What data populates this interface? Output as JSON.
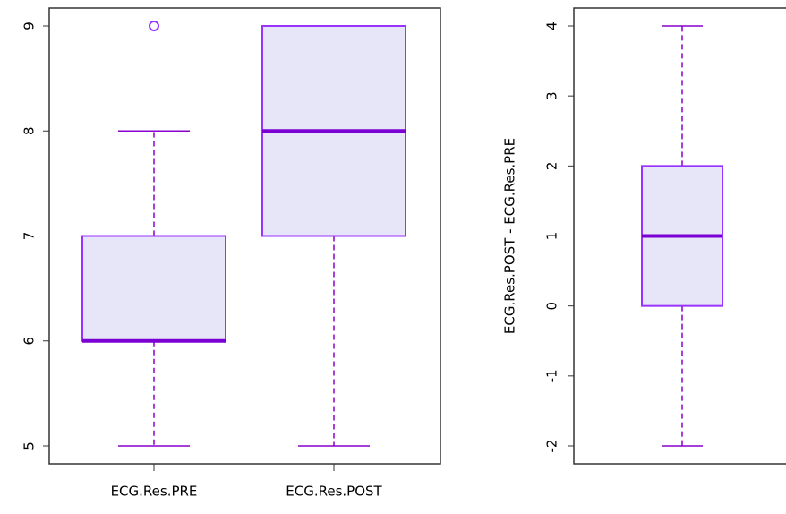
{
  "chart_data": [
    {
      "type": "boxplot",
      "title": "",
      "xlabel": "",
      "ylabel": "",
      "ylim": [
        5,
        9
      ],
      "yticks": [
        5,
        6,
        7,
        8,
        9
      ],
      "categories": [
        "ECG.Res.PRE",
        "ECG.Res.POST"
      ],
      "boxes": [
        {
          "category": "ECG.Res.PRE",
          "whisker_low": 5,
          "q1": 6,
          "median": 6,
          "q3": 7,
          "whisker_high": 8,
          "outliers": [
            9
          ]
        },
        {
          "category": "ECG.Res.POST",
          "whisker_low": 5,
          "q1": 7,
          "median": 8,
          "q3": 9,
          "whisker_high": 9,
          "outliers": []
        }
      ],
      "box_fill": "#e6e6f8",
      "border_color": "#9933ff",
      "median_color": "#7b00d4",
      "whisker_color": "#8800cc",
      "grid": false
    },
    {
      "type": "boxplot",
      "title": "",
      "xlabel": "",
      "ylabel": "ECG.Res.POST - ECG.Res.PRE",
      "ylim": [
        -2,
        4
      ],
      "yticks": [
        -2,
        -1,
        0,
        1,
        2,
        3,
        4
      ],
      "categories": [
        ""
      ],
      "boxes": [
        {
          "category": "",
          "whisker_low": -2,
          "q1": 0,
          "median": 1,
          "q3": 2,
          "whisker_high": 4,
          "outliers": []
        }
      ],
      "box_fill": "#e6e6f8",
      "border_color": "#9933ff",
      "median_color": "#7b00d4",
      "whisker_color": "#8800cc",
      "grid": false
    }
  ]
}
